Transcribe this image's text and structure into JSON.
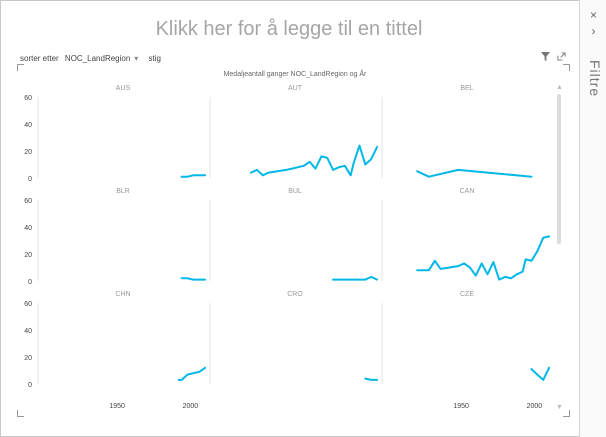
{
  "title_placeholder": "Klikk her for å legge til en tittel",
  "filter_pane": {
    "label": "Filtre",
    "close_icon": "×",
    "collapse_icon": "›"
  },
  "sort_bar": {
    "prefix": "sorter etter",
    "field": "NOC_LandRegion",
    "order": "stig"
  },
  "chart_title": "Medaljeantall ganger NOC_LandRegion og År",
  "colors": {
    "line": "#01b8e8",
    "axis": "#c8c8c8",
    "label": "#999999",
    "tick": "#444444"
  },
  "chart_data": {
    "type": "line",
    "title": "Medaljeantall ganger NOC_LandRegion og År",
    "xlim": [
      1896,
      2012
    ],
    "ylim": [
      0,
      60
    ],
    "y_ticks": [
      0,
      20,
      40,
      60
    ],
    "x_ticks": [
      1950,
      2000
    ],
    "panels": [
      {
        "name": "AUS",
        "x": [
          1994,
          1998,
          2002,
          2006,
          2010
        ],
        "y": [
          1,
          1,
          2,
          2,
          2
        ]
      },
      {
        "name": "AUT",
        "x": [
          1924,
          1928,
          1932,
          1936,
          1948,
          1952,
          1956,
          1960,
          1964,
          1968,
          1972,
          1976,
          1980,
          1984,
          1988,
          1992,
          1994,
          1998,
          2002,
          2006,
          2010
        ],
        "y": [
          4,
          6,
          2,
          4,
          6,
          7,
          8,
          9,
          12,
          7,
          16,
          15,
          6,
          8,
          9,
          2,
          11,
          24,
          10,
          14,
          23
        ]
      },
      {
        "name": "BEL",
        "x": [
          1920,
          1928,
          1948,
          1998
        ],
        "y": [
          5,
          1,
          6,
          1
        ]
      },
      {
        "name": "BLR",
        "x": [
          1994,
          1998,
          2002,
          2006,
          2010
        ],
        "y": [
          2,
          2,
          1,
          1,
          1
        ]
      },
      {
        "name": "BUL",
        "x": [
          1980,
          1984,
          1988,
          1992,
          1994,
          1998,
          2002,
          2006,
          2010
        ],
        "y": [
          1,
          1,
          1,
          1,
          1,
          1,
          1,
          3,
          1
        ]
      },
      {
        "name": "CAN",
        "x": [
          1920,
          1924,
          1928,
          1932,
          1936,
          1948,
          1952,
          1956,
          1960,
          1964,
          1968,
          1972,
          1976,
          1980,
          1984,
          1988,
          1992,
          1994,
          1998,
          2002,
          2006,
          2010
        ],
        "y": [
          8,
          8,
          8,
          15,
          9,
          11,
          13,
          10,
          4,
          13,
          5,
          14,
          1,
          3,
          2,
          5,
          7,
          16,
          15,
          22,
          32,
          33
        ]
      },
      {
        "name": "CHN",
        "x": [
          1992,
          1994,
          1998,
          2002,
          2006,
          2010
        ],
        "y": [
          3,
          3,
          7,
          8,
          9,
          12
        ]
      },
      {
        "name": "CRO",
        "x": [
          2002,
          2006,
          2010
        ],
        "y": [
          4,
          3,
          3
        ]
      },
      {
        "name": "CZE",
        "x": [
          1998,
          2002,
          2006,
          2010
        ],
        "y": [
          11,
          7,
          3,
          12
        ]
      }
    ]
  }
}
